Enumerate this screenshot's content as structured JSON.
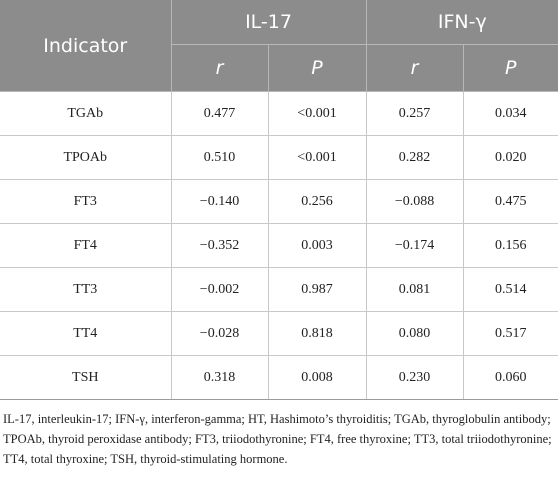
{
  "table": {
    "header": {
      "indicator": "Indicator",
      "group1": "IL-17",
      "group2": "IFN-γ",
      "sub": [
        "r",
        "P",
        "r",
        "P"
      ]
    },
    "rows": [
      {
        "indicator": "TGAb",
        "il17_r": "0.477",
        "il17_p": "<0.001",
        "ifng_r": "0.257",
        "ifng_p": "0.034"
      },
      {
        "indicator": "TPOAb",
        "il17_r": "0.510",
        "il17_p": "<0.001",
        "ifng_r": "0.282",
        "ifng_p": "0.020"
      },
      {
        "indicator": "FT3",
        "il17_r": "−0.140",
        "il17_p": "0.256",
        "ifng_r": "−0.088",
        "ifng_p": "0.475"
      },
      {
        "indicator": "FT4",
        "il17_r": "−0.352",
        "il17_p": "0.003",
        "ifng_r": "−0.174",
        "ifng_p": "0.156"
      },
      {
        "indicator": "TT3",
        "il17_r": "−0.002",
        "il17_p": "0.987",
        "ifng_r": "0.081",
        "ifng_p": "0.514"
      },
      {
        "indicator": "TT4",
        "il17_r": "−0.028",
        "il17_p": "0.818",
        "ifng_r": "0.080",
        "ifng_p": "0.517"
      },
      {
        "indicator": "TSH",
        "il17_r": "0.318",
        "il17_p": "0.008",
        "ifng_r": "0.230",
        "ifng_p": "0.060"
      }
    ]
  },
  "footnote": "IL-17, interleukin-17; IFN-γ, interferon-gamma; HT, Hashimoto’s thyroiditis; TGAb, thyroglobulin antibody; TPOAb, thyroid peroxidase antibody; FT3, triiodothyronine; FT4, free thyroxine; TT3, total triiodothyronine; TT4, total thyroxine; TSH, thyroid-stimulating hormone.",
  "colors": {
    "header_bg": "#8c8c8c",
    "header_text": "#ffffff",
    "grid": "#c8c8c8"
  }
}
